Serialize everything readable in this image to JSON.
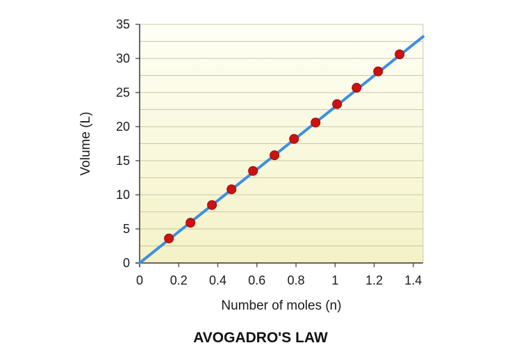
{
  "chart_data": {
    "type": "scatter",
    "caption": "AVOGADRO'S LAW",
    "xlabel": "Number of moles (n)",
    "ylabel": "Volume (L)",
    "xlim": [
      0,
      1.45
    ],
    "ylim": [
      0,
      35
    ],
    "xticks": [
      "0",
      "0.2",
      "0.4",
      "0.6",
      "0.8",
      "1",
      "1.2",
      "1.4"
    ],
    "yticks": [
      "0",
      "5",
      "10",
      "15",
      "20",
      "25",
      "30",
      "35"
    ],
    "grid": "horizontal",
    "series": [
      {
        "x": [
          0.15,
          0.26,
          0.37,
          0.47,
          0.58,
          0.69,
          0.79,
          0.9,
          1.01,
          1.11,
          1.22,
          1.33
        ],
        "y": [
          3.6,
          5.9,
          8.5,
          10.8,
          13.5,
          15.8,
          18.2,
          20.6,
          23.3,
          25.7,
          28.1,
          30.6
        ]
      }
    ],
    "fit_line": {
      "x": [
        0,
        1.45
      ],
      "y": [
        0,
        33.2
      ]
    },
    "colors": {
      "marker": "#cc1111",
      "line": "#3d8fe0",
      "plot_bg_top": "#fefff6",
      "plot_bg_bottom": "#f4f2c6",
      "grid": "#c9c7a8"
    }
  }
}
